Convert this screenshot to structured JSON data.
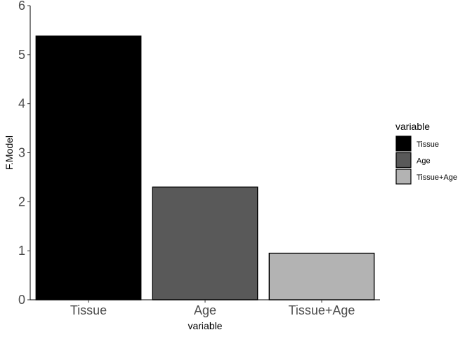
{
  "chart_data": {
    "type": "bar",
    "categories": [
      "Tissue",
      "Age",
      "Tissue+Age"
    ],
    "values": [
      5.38,
      2.3,
      0.95
    ],
    "colors": [
      "#000000",
      "#595959",
      "#b3b3b3"
    ],
    "xlabel": "variable",
    "ylabel": "F.Model",
    "ylim": [
      0,
      6
    ],
    "yticks": [
      "0",
      "1",
      "2",
      "3",
      "4",
      "5",
      "6"
    ],
    "grid": false,
    "legend": {
      "title": "variable",
      "placement": "right",
      "items": [
        "Tissue",
        "Age",
        "Tissue+Age"
      ]
    }
  }
}
